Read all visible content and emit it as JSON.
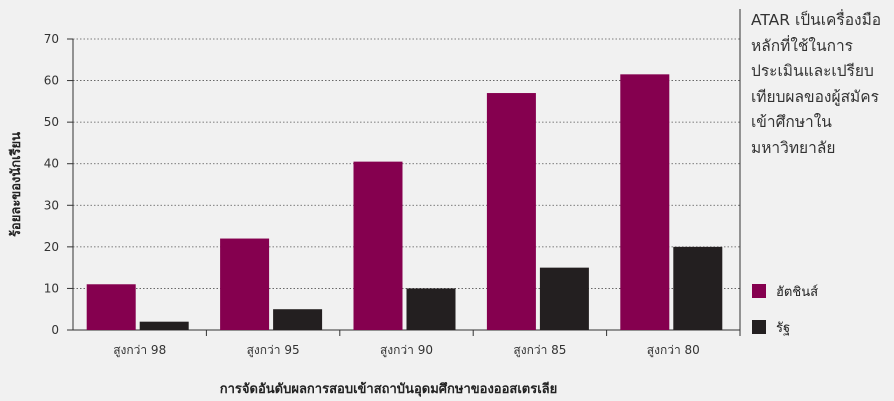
{
  "chart_data": {
    "type": "bar",
    "title": "",
    "xlabel": "การจัดอันดับผลการสอบเข้าสถาบันอุดมศึกษาของออสเตรเลีย",
    "ylabel": "ร้อยละของนักเรียน",
    "ylim": [
      0,
      70
    ],
    "yticks": [
      "0",
      "10",
      "20",
      "30",
      "40",
      "50",
      "60",
      "70"
    ],
    "grid": true,
    "legend_position": "bottom-right",
    "categories": [
      "สูงกว่า 98",
      "สูงกว่า 95",
      "สูงกว่า 90",
      "สูงกว่า 85",
      "สูงกว่า 80"
    ],
    "series": [
      {
        "name": "ฮัตชินส์",
        "color": "#85004f",
        "values": [
          11,
          22,
          40.5,
          57,
          61.5
        ]
      },
      {
        "name": "รัฐ",
        "color": "#231f20",
        "values": [
          2,
          5,
          10,
          15,
          20
        ]
      }
    ]
  },
  "side_note": "ATAR เป็นเครื่องมือหลักที่ใช้ในการประเมินและเปรียบเทียบผลของผู้สมัครเข้าศึกษาในมหาวิทยาลัย"
}
